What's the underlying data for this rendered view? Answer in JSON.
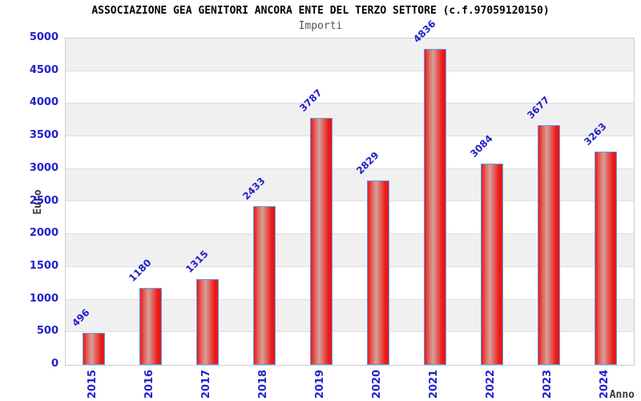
{
  "chart_data": {
    "type": "bar",
    "title": "ASSOCIAZIONE GEA GENITORI ANCORA ENTE DEL TERZO SETTORE (c.f.97059120150)",
    "subtitle": "Importi",
    "xlabel": "Anno",
    "ylabel": "Euro",
    "categories": [
      "2015",
      "2016",
      "2017",
      "2018",
      "2019",
      "2020",
      "2021",
      "2022",
      "2023",
      "2024"
    ],
    "values": [
      496,
      1180,
      1315,
      2433,
      3787,
      2829,
      4836,
      3084,
      3677,
      3263
    ],
    "ylim": [
      0,
      5000
    ],
    "ytick_step": 500,
    "y_tick_labels": [
      "0",
      "500",
      "1000",
      "1500",
      "2000",
      "2500",
      "3000",
      "3500",
      "4000",
      "4500",
      "5000"
    ],
    "bar_value_labels": true,
    "grid": "horizontal-bands",
    "legend_position": "none"
  },
  "colors": {
    "tick_label": "#2222cc",
    "value_label": "#2222cc",
    "bar_edge": "#ec1717",
    "bar_mid": "#e06a62",
    "bar_highlight": "#d5a09b",
    "bar_border": "#58a0e8",
    "band_gray": "#f1f0f0",
    "band_white": "#ffffff"
  }
}
